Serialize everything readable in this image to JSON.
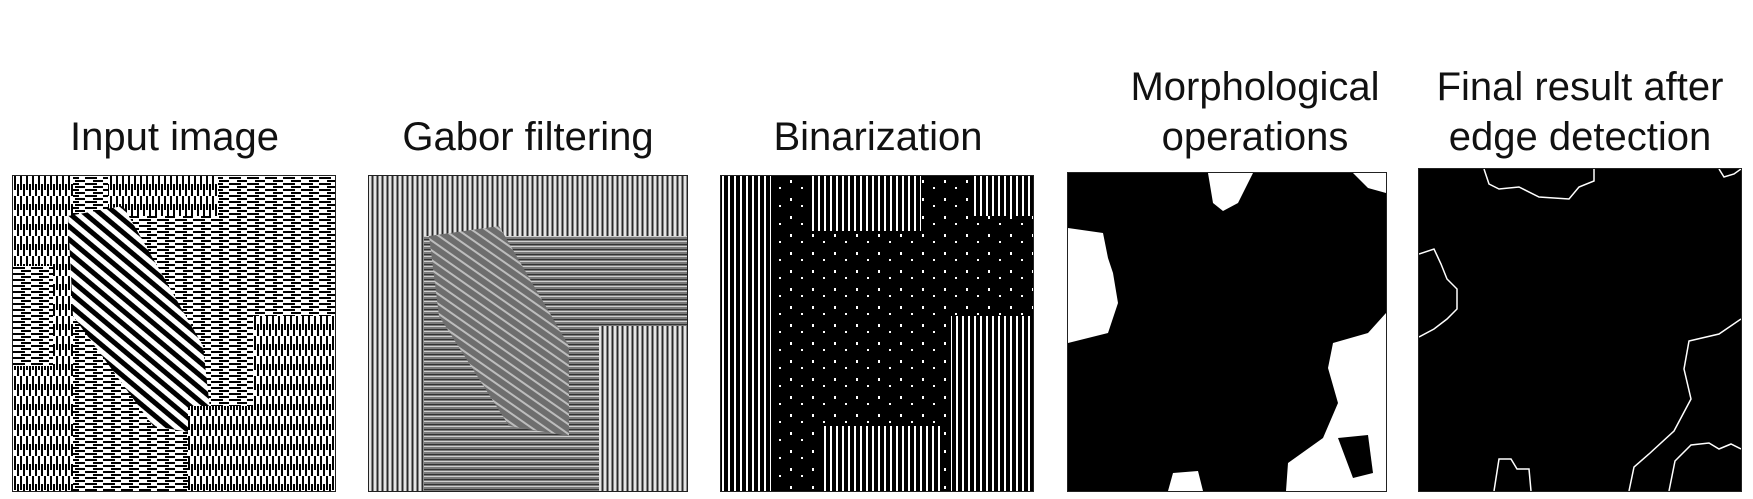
{
  "panels": [
    {
      "title": "Input image"
    },
    {
      "title": "Gabor filtering"
    },
    {
      "title": "Binarization"
    },
    {
      "title": "Morphological\noperations"
    },
    {
      "title": "Final result after\nedge detection"
    }
  ]
}
